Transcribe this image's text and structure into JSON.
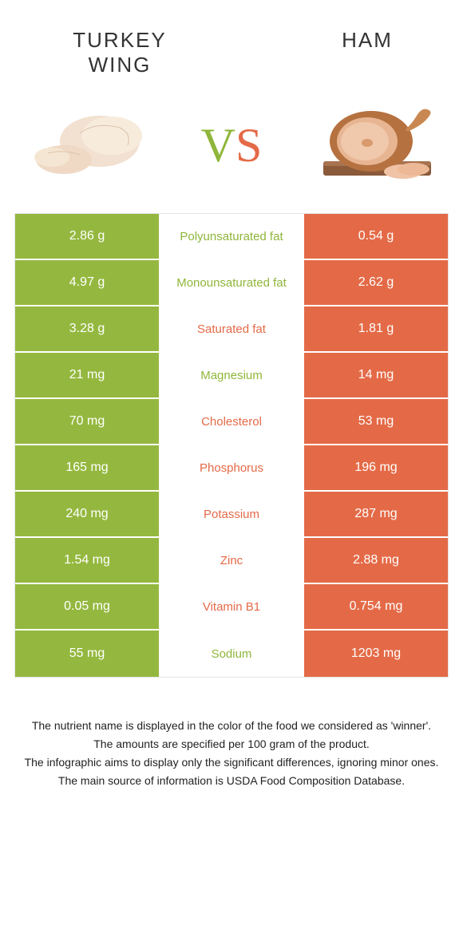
{
  "colors": {
    "green": "#94b83f",
    "orange": "#e46a47",
    "greenText": "#8fb63a",
    "orangeText": "#e46a47"
  },
  "header": {
    "left": "TURKEY WING",
    "right": "HAM",
    "vs_v": "V",
    "vs_s": "S"
  },
  "rows": [
    {
      "left": "2.86 g",
      "label": "Polyunsaturated fat",
      "right": "0.54 g",
      "winner": "left"
    },
    {
      "left": "4.97 g",
      "label": "Monounsaturated fat",
      "right": "2.62 g",
      "winner": "left"
    },
    {
      "left": "3.28 g",
      "label": "Saturated fat",
      "right": "1.81 g",
      "winner": "right"
    },
    {
      "left": "21 mg",
      "label": "Magnesium",
      "right": "14 mg",
      "winner": "left"
    },
    {
      "left": "70 mg",
      "label": "Cholesterol",
      "right": "53 mg",
      "winner": "right"
    },
    {
      "left": "165 mg",
      "label": "Phosphorus",
      "right": "196 mg",
      "winner": "right"
    },
    {
      "left": "240 mg",
      "label": "Potassium",
      "right": "287 mg",
      "winner": "right"
    },
    {
      "left": "1.54 mg",
      "label": "Zinc",
      "right": "2.88 mg",
      "winner": "right"
    },
    {
      "left": "0.05 mg",
      "label": "Vitamin B1",
      "right": "0.754 mg",
      "winner": "right"
    },
    {
      "left": "55 mg",
      "label": "Sodium",
      "right": "1203 mg",
      "winner": "left"
    }
  ],
  "footnotes": [
    "The nutrient name is displayed in the color of the food we considered as 'winner'.",
    "The amounts are specified per 100 gram of the product.",
    "The infographic aims to display only the significant differences, ignoring minor ones.",
    "The main source of information is USDA Food Composition Database."
  ]
}
